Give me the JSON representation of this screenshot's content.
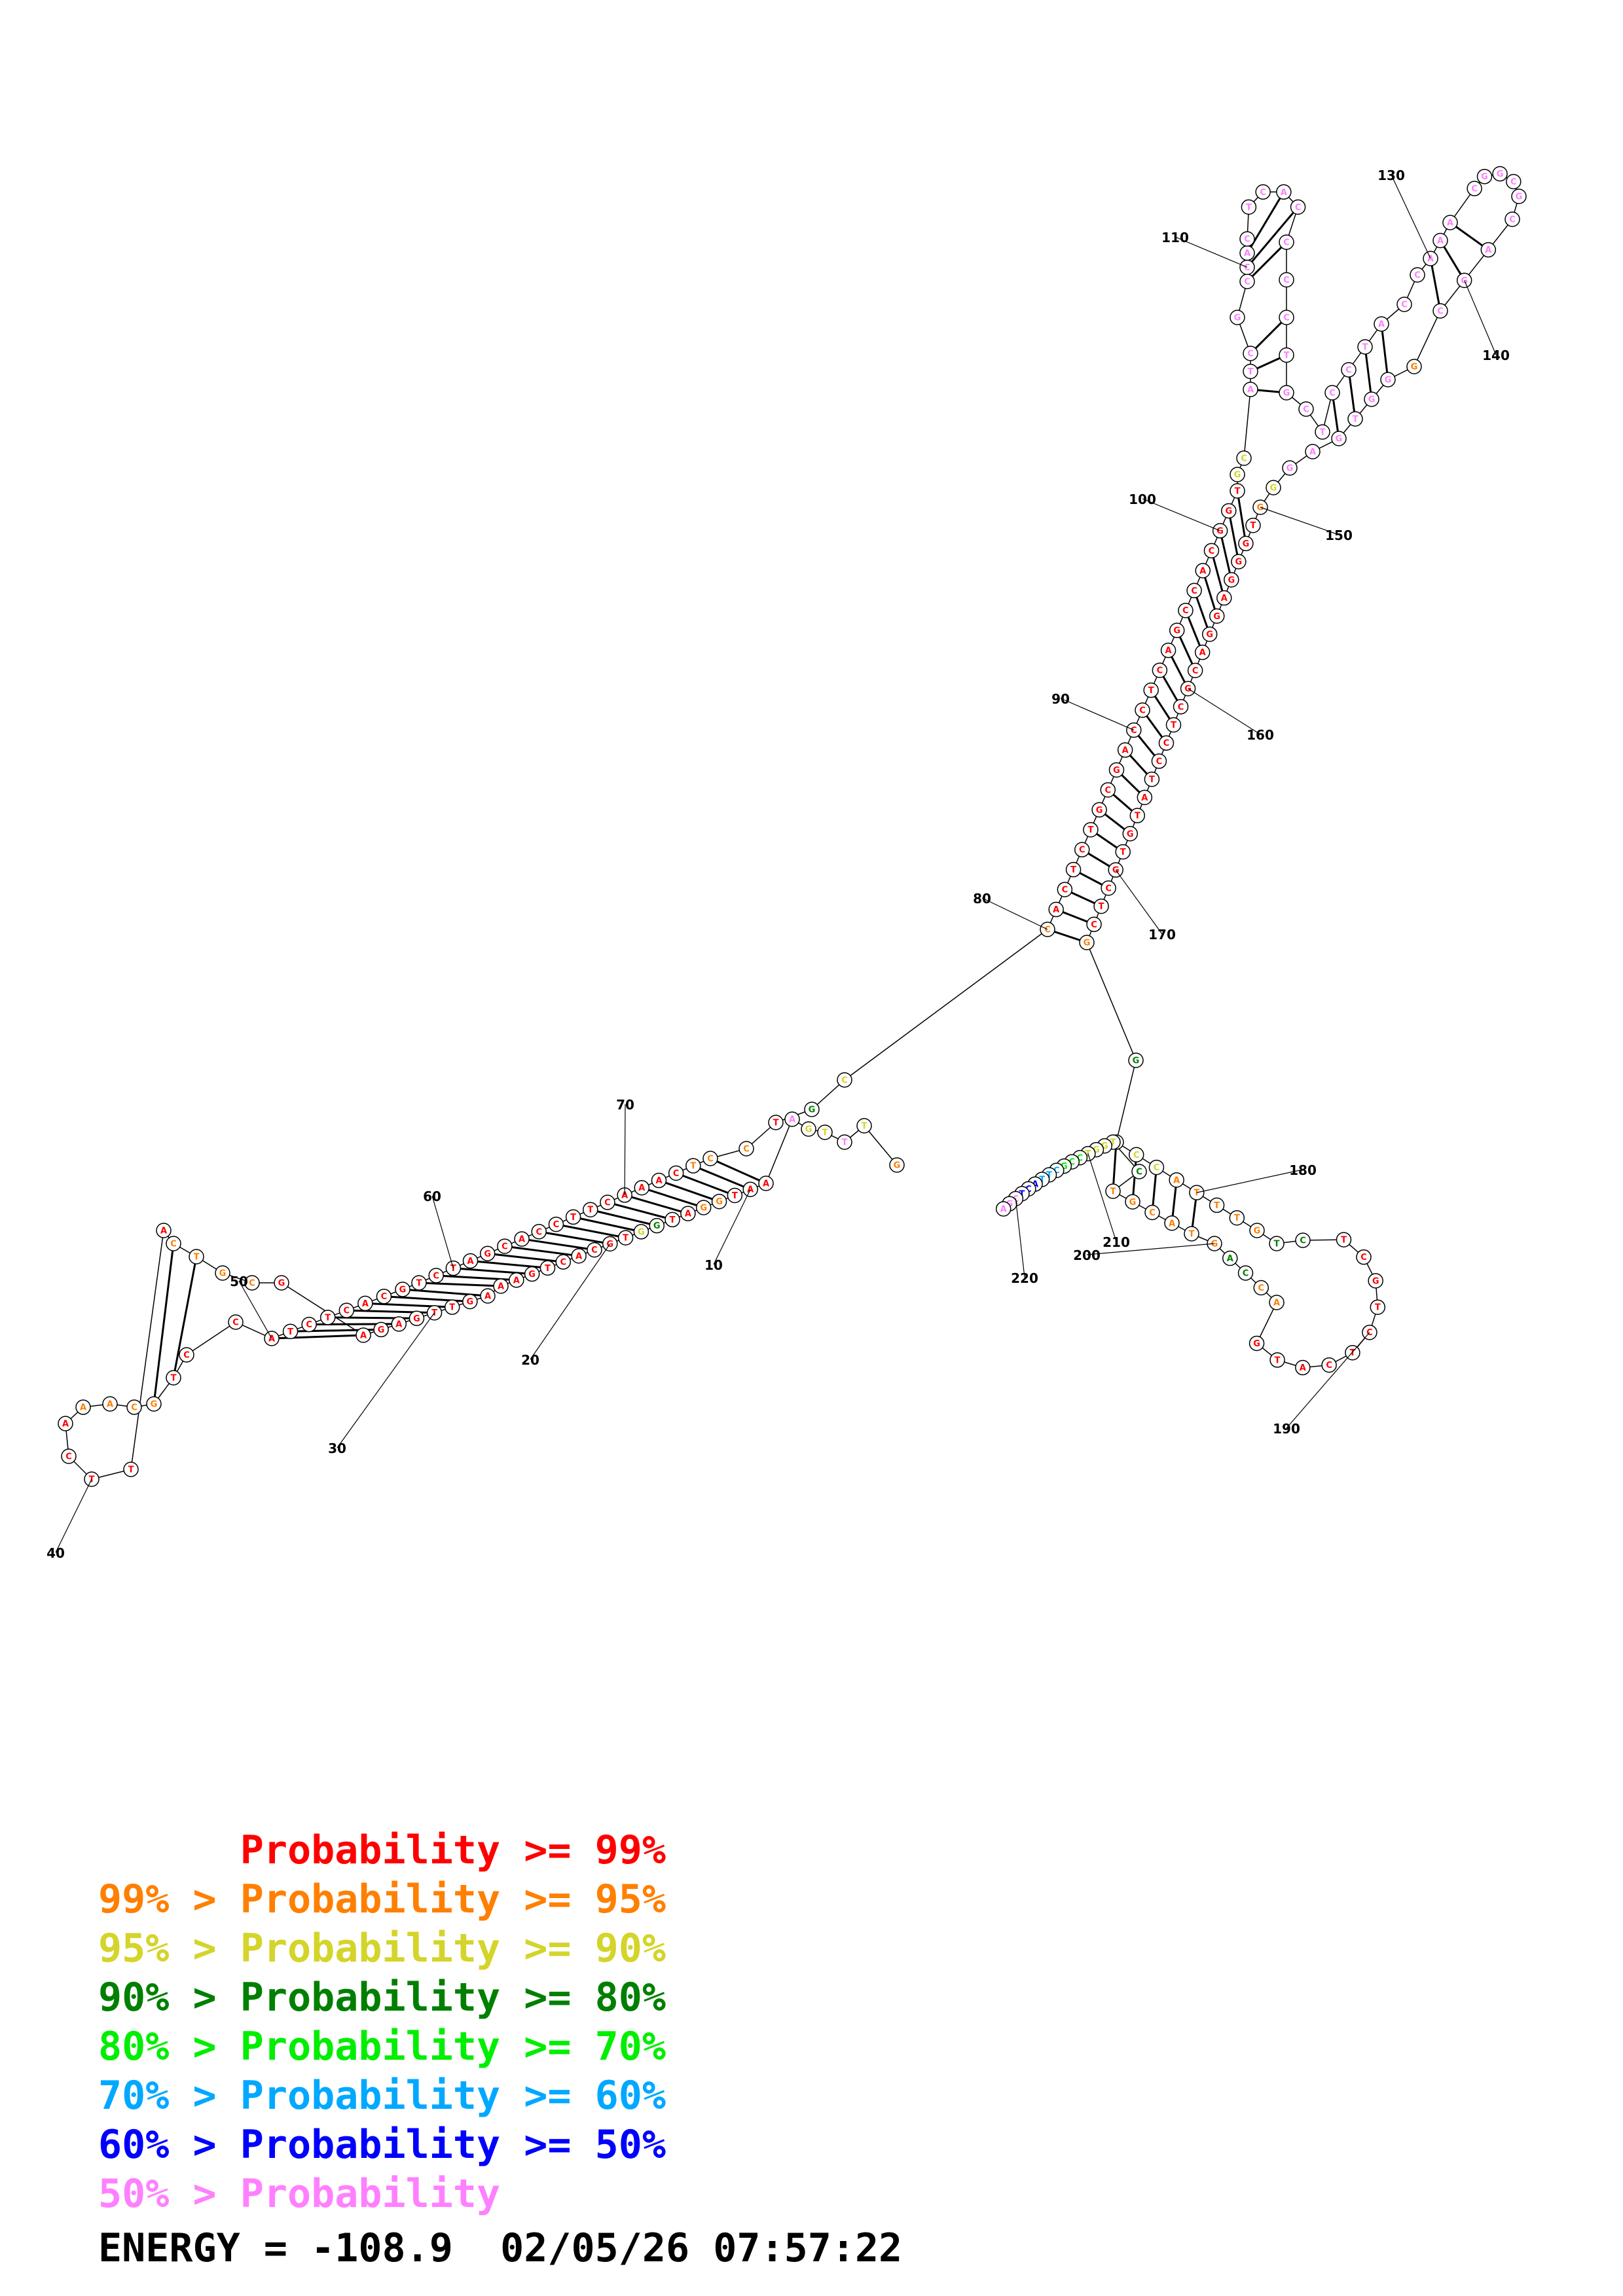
{
  "colors": {
    "p99": "#ff0000",
    "p95": "#ff7f00",
    "p90": "#d4d42a",
    "p80": "#007f00",
    "p70": "#00ee00",
    "p60": "#00a8ff",
    "p50": "#0000ff",
    "plow": "#ff80ff"
  },
  "structure": {
    "sequence": "GTTTGAAATGGATGGTGCACTGAAAGTTGAGAGCGTCATTCAAACGTCCATCTCACGTCTAGCACCTTCAAACTCCTGCCACTCTGCGACCTCAGCCACGGTGCATCGCCACTCACCCCTGCTCCTACCAAACGGCGCAGCGGGTGAGGGTGGGAGGACGCTCCTATGTGCTCGGGCCATTTGTCTCGTCTCATGACCAGTACGTCTGGTCCGCTTACTCGA",
    "legend": [
      {
        "prefix": "",
        "label": "Probability >= 99%",
        "color": "#ff0000"
      },
      {
        "prefix": "99% > ",
        "label": "Probability >= 95%",
        "color": "#ff7f00"
      },
      {
        "prefix": "95% > ",
        "label": "Probability >= 90%",
        "color": "#d4d42a"
      },
      {
        "prefix": "90% > ",
        "label": "Probability >= 80%",
        "color": "#007f00"
      },
      {
        "prefix": "80% > ",
        "label": "Probability >= 70%",
        "color": "#00ee00"
      },
      {
        "prefix": "70% > ",
        "label": "Probability >= 60%",
        "color": "#00a8ff"
      },
      {
        "prefix": "60% > ",
        "label": "Probability >= 50%",
        "color": "#0000ff"
      },
      {
        "prefix": "50% > ",
        "label": "Probability",
        "color": "#ff80ff"
      }
    ],
    "position_labels": [
      "10",
      "20",
      "30",
      "40",
      "50",
      "60",
      "70",
      "80",
      "90",
      "100",
      "110",
      "130",
      "140",
      "150",
      "160",
      "170",
      "180",
      "190",
      "200",
      "210",
      "220"
    ]
  },
  "energy_line": "ENERGY = -108.9  02/05/26 07:57:22"
}
